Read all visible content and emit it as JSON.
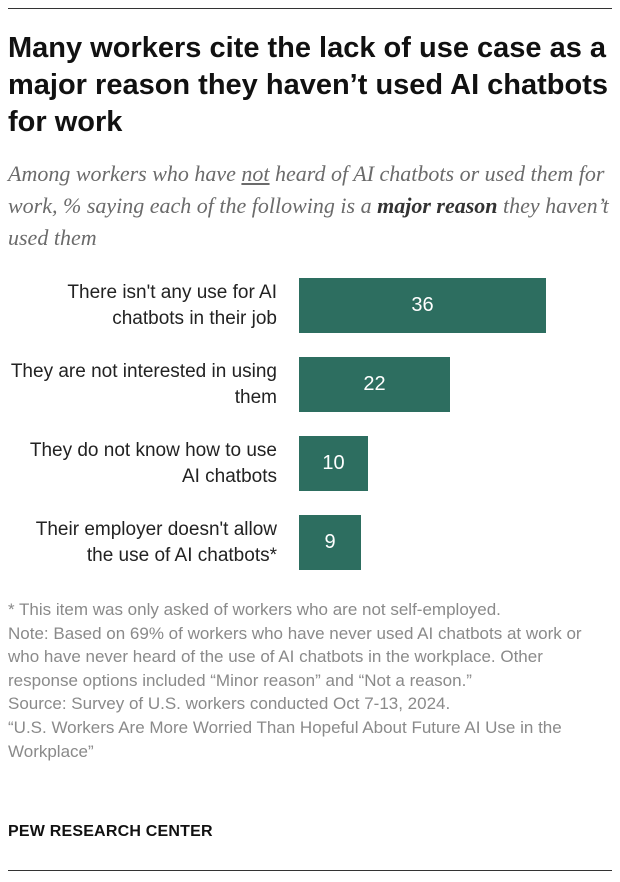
{
  "title": "Many workers cite the lack of use case as a major reason they haven’t used AI chatbots for work",
  "subtitle": {
    "part1": "Among workers who have ",
    "underlined": "not",
    "part2": " heard of AI chatbots or used them for work, % saying each of the following is a ",
    "bold": "major reason",
    "part3": " they haven’t used them"
  },
  "chart_data": {
    "type": "bar",
    "orientation": "horizontal",
    "categories": [
      "There isn't any use for AI chatbots in their job",
      "They are not interested in using them",
      "They do not know how to use AI chatbots",
      "Their employer doesn't allow the use of AI chatbots*"
    ],
    "values": [
      36,
      22,
      10,
      9
    ],
    "value_labels": [
      "36",
      "22",
      "10",
      "9"
    ],
    "bar_color": "#2d6e60",
    "title": "",
    "xlabel": "",
    "ylabel": "",
    "xlim": [
      0,
      36
    ],
    "grid": false,
    "legend": "none"
  },
  "notes": {
    "asterisk": "* This item was only asked of workers who are not self-employed.",
    "note": "Note: Based on 69% of workers who have never used AI chatbots at work or who have never heard of the use of AI chatbots in the workplace. Other response options included “Minor reason” and “Not a reason.”",
    "source": "Source: Survey of U.S. workers conducted Oct 7-13, 2024.",
    "report": "“U.S. Workers Are More Worried Than Hopeful About Future AI Use in the Workplace”"
  },
  "org": "PEW RESEARCH CENTER"
}
